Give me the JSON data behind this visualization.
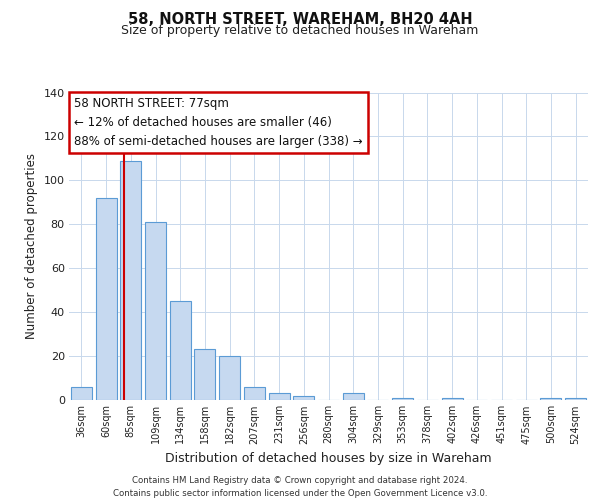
{
  "title": "58, NORTH STREET, WAREHAM, BH20 4AH",
  "subtitle": "Size of property relative to detached houses in Wareham",
  "xlabel": "Distribution of detached houses by size in Wareham",
  "ylabel": "Number of detached properties",
  "bar_labels": [
    "36sqm",
    "60sqm",
    "85sqm",
    "109sqm",
    "134sqm",
    "158sqm",
    "182sqm",
    "207sqm",
    "231sqm",
    "256sqm",
    "280sqm",
    "304sqm",
    "329sqm",
    "353sqm",
    "378sqm",
    "402sqm",
    "426sqm",
    "451sqm",
    "475sqm",
    "500sqm",
    "524sqm"
  ],
  "bar_values": [
    6,
    92,
    109,
    81,
    45,
    23,
    20,
    6,
    3,
    2,
    0,
    3,
    0,
    1,
    0,
    1,
    0,
    0,
    0,
    1,
    1
  ],
  "bar_color": "#c6d9f0",
  "bar_edge_color": "#5b9bd5",
  "ylim": [
    0,
    140
  ],
  "yticks": [
    0,
    20,
    40,
    60,
    80,
    100,
    120,
    140
  ],
  "red_line_x": 1.72,
  "marker_color": "#cc0000",
  "annotation_title": "58 NORTH STREET: 77sqm",
  "annotation_line1": "← 12% of detached houses are smaller (46)",
  "annotation_line2": "88% of semi-detached houses are larger (338) →",
  "footer_line1": "Contains HM Land Registry data © Crown copyright and database right 2024.",
  "footer_line2": "Contains public sector information licensed under the Open Government Licence v3.0.",
  "background_color": "#ffffff",
  "grid_color": "#c8d8ec"
}
